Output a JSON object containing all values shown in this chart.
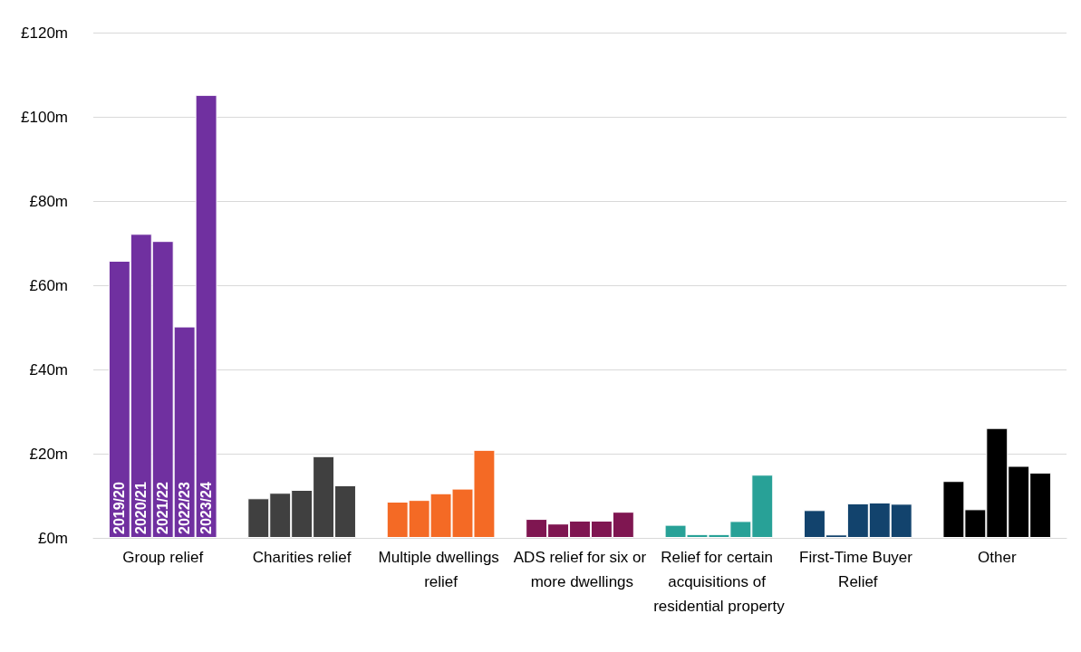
{
  "chart_data": {
    "type": "bar",
    "categories": [
      "Group relief",
      "Charities relief",
      "Multiple dwellings relief",
      "ADS relief for six or more dwellings",
      "Relief for certain acquisitions of residential property",
      "First-Time Buyer Relief",
      "Other"
    ],
    "series": [
      {
        "name": "2019/20",
        "colors": [
          "#7030a0",
          "#404040",
          "#f46a25",
          "#7f1651",
          "#28a197",
          "#12436d",
          "#000000"
        ],
        "values": [
          65.8,
          9.4,
          8.6,
          4.5,
          3.1,
          6.6,
          13.5
        ]
      },
      {
        "name": "2020/21",
        "colors": [
          "#7030a0",
          "#404040",
          "#f46a25",
          "#7f1651",
          "#28a197",
          "#12436d",
          "#000000"
        ],
        "values": [
          72.2,
          10.7,
          9.0,
          3.4,
          0.9,
          0.8,
          6.8
        ]
      },
      {
        "name": "2021/22",
        "colors": [
          "#7030a0",
          "#404040",
          "#f46a25",
          "#7f1651",
          "#28a197",
          "#12436d",
          "#000000"
        ],
        "values": [
          70.5,
          11.4,
          10.6,
          4.1,
          0.9,
          8.2,
          26.1
        ]
      },
      {
        "name": "2022/23",
        "colors": [
          "#7030a0",
          "#404040",
          "#f46a25",
          "#7f1651",
          "#28a197",
          "#12436d",
          "#000000"
        ],
        "values": [
          50.2,
          19.4,
          11.7,
          4.1,
          4.0,
          8.4,
          17.1
        ]
      },
      {
        "name": "2023/24",
        "colors": [
          "#7030a0",
          "#404040",
          "#f46a25",
          "#7f1651",
          "#28a197",
          "#12436d",
          "#000000"
        ],
        "values": [
          105.2,
          12.5,
          20.9,
          6.2,
          15.0,
          8.1,
          15.5
        ]
      }
    ],
    "ylim": [
      0,
      120
    ],
    "yticks": [
      {
        "value": 0,
        "label": "£0m"
      },
      {
        "value": 20,
        "label": "£20m"
      },
      {
        "value": 40,
        "label": "£40m"
      },
      {
        "value": 60,
        "label": "£60m"
      },
      {
        "value": 80,
        "label": "£80m"
      },
      {
        "value": 100,
        "label": "£100m"
      },
      {
        "value": 120,
        "label": "£120m"
      }
    ],
    "grid": "y",
    "legend": false
  }
}
